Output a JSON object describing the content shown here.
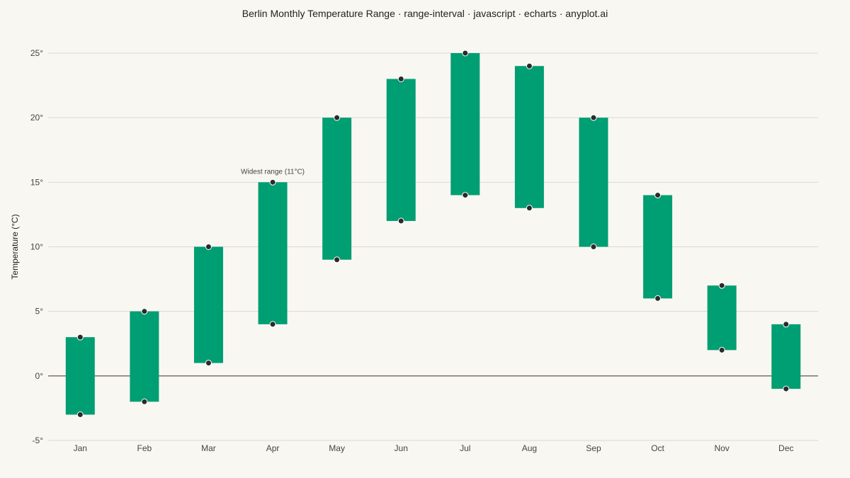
{
  "chart_data": {
    "type": "range-bar",
    "title": "Berlin Monthly Temperature Range · range-interval · javascript · echarts · anyplot.ai",
    "ylabel": "Temperature (°C)",
    "xlabel": "",
    "categories": [
      "Jan",
      "Feb",
      "Mar",
      "Apr",
      "May",
      "Jun",
      "Jul",
      "Aug",
      "Sep",
      "Oct",
      "Nov",
      "Dec"
    ],
    "series": [
      {
        "low": [
          -3,
          -2,
          1,
          4,
          9,
          12,
          14,
          13,
          10,
          6,
          2,
          -1
        ],
        "high": [
          3,
          5,
          10,
          15,
          20,
          23,
          25,
          24,
          20,
          14,
          7,
          4
        ]
      }
    ],
    "ylim": [
      -5,
      25
    ],
    "yticks": [
      -5,
      0,
      5,
      10,
      15,
      20,
      25
    ],
    "ytick_labels": [
      "-5°",
      "0°",
      "5°",
      "10°",
      "15°",
      "20°",
      "25°"
    ],
    "grid": true,
    "annotations": [
      {
        "category": "Apr",
        "y": 15,
        "text": "Widest range (11°C)"
      }
    ],
    "colors": {
      "bar": "#009e73",
      "marker": "#2b2b2b",
      "marker_stroke": "#ffffff",
      "grid": "#d9d9d6",
      "zero_line": "#333333",
      "background": "#f9f7f1"
    }
  }
}
